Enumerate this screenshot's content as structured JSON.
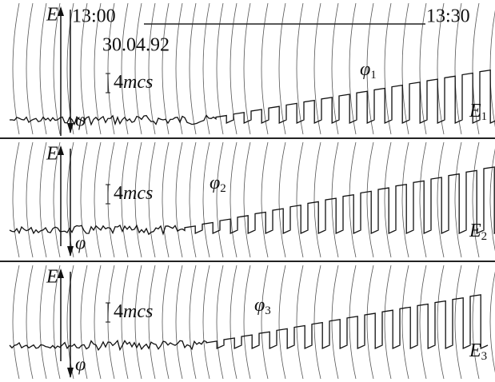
{
  "header": {
    "time_start": "13:00",
    "time_end": "13:30",
    "date": "30.04.92"
  },
  "panels": [
    {
      "axis_e": "E",
      "axis_phi": "φ",
      "scale_number": "4",
      "scale_unit": "mcs",
      "trace_label": "φ",
      "trace_sub": "1",
      "signal_label": "E",
      "signal_sub": "1"
    },
    {
      "axis_e": "E",
      "axis_phi": "φ",
      "scale_number": "4",
      "scale_unit": "mcs",
      "trace_label": "φ",
      "trace_sub": "2",
      "signal_label": "E",
      "signal_sub": "2"
    },
    {
      "axis_e": "E",
      "axis_phi": "φ",
      "scale_number": "4",
      "scale_unit": "mcs",
      "trace_label": "φ",
      "trace_sub": "3",
      "signal_label": "E",
      "signal_sub": "3"
    }
  ]
}
